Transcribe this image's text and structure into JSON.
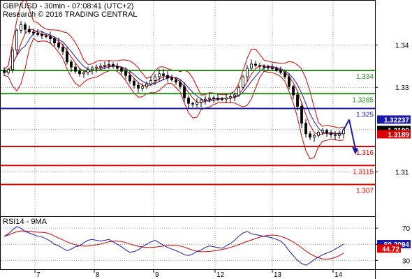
{
  "header": {
    "line1": "GBP/USD - 30min - 07:08:41 (UTC+2)",
    "line2": "Research © 2016 TRADING CENTRAL"
  },
  "colors": {
    "candle": "#000000",
    "bollinger": "#cc0000",
    "ma": "#1a1aa6",
    "green_level": "#2e8b22",
    "blue_level": "#1a1aa6",
    "red_level": "#dd0000",
    "arrow": "#1a1aa6",
    "rsi": "#1a1aa6",
    "rsi_ma": "#cc0000"
  },
  "chart_data": [
    {
      "type": "candlestick",
      "title": "GBP/USD - 30min",
      "x_tick_labels": [
        "7",
        "8",
        "9",
        "12",
        "13",
        "14"
      ],
      "ylim": [
        1.2995,
        1.3505
      ],
      "y_tick_labels": [
        "1.34",
        "1.33",
        "1.31"
      ],
      "y_ticks": [
        1.34,
        1.33,
        1.32,
        1.31
      ],
      "levels": [
        {
          "value": 1.334,
          "label": "1.334",
          "color": "green"
        },
        {
          "value": 1.3285,
          "label": "1.3285",
          "color": "green"
        },
        {
          "value": 1.325,
          "label": "1.325",
          "color": "blue"
        },
        {
          "value": 1.316,
          "label": "1.316",
          "color": "red"
        },
        {
          "value": 1.3115,
          "label": "1.3115",
          "color": "red"
        },
        {
          "value": 1.307,
          "label": "1.307",
          "color": "red"
        }
      ],
      "price_tags": [
        {
          "value": 1.32237,
          "label": "1.32237",
          "color": "blue"
        },
        {
          "value": 1.3199,
          "label": "1.3199",
          "color": "black"
        },
        {
          "value": 1.3189,
          "label": "1.3189",
          "color": "red"
        }
      ],
      "close_series": [
        1.3335,
        1.3342,
        1.3388,
        1.3435,
        1.3448,
        1.3437,
        1.3431,
        1.3428,
        1.3425,
        1.3422,
        1.342,
        1.3415,
        1.3405,
        1.3395,
        1.3385,
        1.336,
        1.3348,
        1.3338,
        1.3332,
        1.3335,
        1.3342,
        1.3346,
        1.3348,
        1.335,
        1.3352,
        1.3354,
        1.335,
        1.3345,
        1.3338,
        1.3328,
        1.3315,
        1.3305,
        1.3298,
        1.3302,
        1.3308,
        1.3316,
        1.3325,
        1.3332,
        1.3328,
        1.3322,
        1.3318,
        1.3312,
        1.3302,
        1.3275,
        1.3262,
        1.326,
        1.3265,
        1.327,
        1.3272,
        1.3275,
        1.3274,
        1.3273,
        1.3272,
        1.3275,
        1.3278,
        1.3282,
        1.33,
        1.3325,
        1.3345,
        1.3355,
        1.3352,
        1.335,
        1.3348,
        1.3346,
        1.3344,
        1.334,
        1.3335,
        1.3325,
        1.3302,
        1.3282,
        1.3255,
        1.3215,
        1.319,
        1.3182,
        1.3186,
        1.3194,
        1.3198,
        1.3192,
        1.3188,
        1.3186,
        1.319,
        1.3199
      ],
      "forecast": {
        "from": 1.32237,
        "to": 1.3144
      }
    },
    {
      "type": "line",
      "title": "RSI14 - 9MA",
      "ylim": [
        19,
        84
      ],
      "y_tick_labels": [
        "70",
        "50",
        "30"
      ],
      "y_ticks": [
        70,
        50,
        30
      ],
      "series": [
        {
          "name": "RSI14",
          "color": "blue",
          "last_label": "50.2094"
        },
        {
          "name": "9MA",
          "color": "red",
          "last_label": "44.72"
        }
      ],
      "rsi_series": [
        60,
        63,
        68,
        72,
        70,
        66,
        64,
        62,
        60,
        59,
        57,
        54,
        50,
        48,
        45,
        42,
        44,
        47,
        48,
        52,
        55,
        56,
        55,
        54,
        55,
        56,
        53,
        50,
        47,
        43,
        40,
        41,
        43,
        47,
        50,
        53,
        55,
        52,
        49,
        46,
        44,
        42,
        40,
        37,
        36,
        38,
        41,
        43,
        46,
        48,
        47,
        46,
        45,
        48,
        51,
        55,
        60,
        64,
        66,
        63,
        62,
        61,
        60,
        59,
        58,
        56,
        54,
        49,
        42,
        36,
        30,
        26,
        24,
        27,
        31,
        34,
        37,
        39,
        41,
        44,
        47,
        50.2094
      ]
    }
  ]
}
